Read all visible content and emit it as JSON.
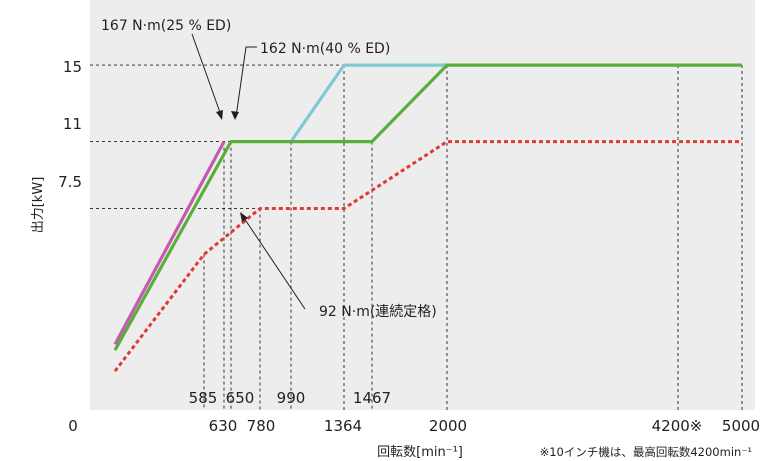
{
  "chart_data": {
    "type": "line",
    "ylabel": "出力[kW]",
    "xlabel": "回転数[min⁻¹]",
    "note": "※10インチ機は、最高回転数4200min⁻¹",
    "y_ticks": [
      "15",
      "11",
      "7.5"
    ],
    "x_tick_upper": [
      "585",
      "650",
      "990",
      "1467"
    ],
    "x_tick_lower": [
      "0",
      "630",
      "780",
      "1364",
      "2000",
      "4200※",
      "5000"
    ],
    "annotations": {
      "peak_25": "167 N·m(25 % ED)",
      "peak_40": "162 N·m(40 % ED)",
      "continuous": "92 N·m(連続定格)"
    },
    "series": [
      {
        "name": "167 N·m(25 % ED)",
        "color": "#c45bb0",
        "style": "solid",
        "points": [
          [
            0,
            0.4
          ],
          [
            630,
            11
          ]
        ]
      },
      {
        "name": "162 N·m(40 % ED)",
        "color": "#7ec9d4",
        "style": "solid",
        "points": [
          [
            990,
            11
          ],
          [
            1364,
            15
          ],
          [
            2000,
            15
          ]
        ]
      },
      {
        "name": "",
        "color": "#5aae3c",
        "style": "solid",
        "points": [
          [
            0,
            0.1
          ],
          [
            650,
            11
          ],
          [
            1467,
            11
          ],
          [
            2000,
            15
          ],
          [
            5000,
            15
          ]
        ]
      },
      {
        "name": "92 N·m(連続定格)",
        "color": "#e03a34",
        "style": "dotted",
        "points": [
          [
            0,
            -1
          ],
          [
            585,
            5.1
          ],
          [
            780,
            7.5
          ],
          [
            1364,
            7.5
          ],
          [
            2000,
            11
          ],
          [
            5000,
            11
          ]
        ]
      }
    ]
  }
}
